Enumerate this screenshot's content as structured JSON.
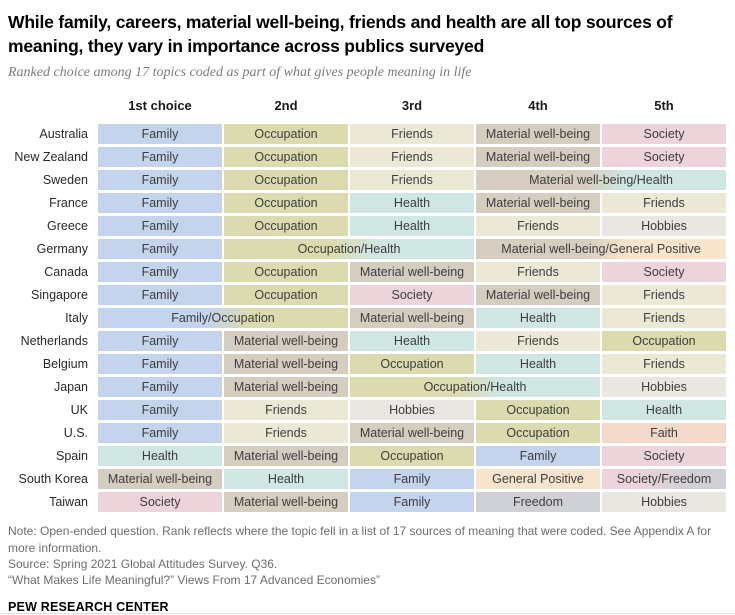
{
  "header": {
    "title": "While family, careers, material well-being, friends and health are all top sources of meaning, they vary in importance across publics surveyed",
    "subtitle": "Ranked choice among 17 topics coded as part of what gives people meaning in life"
  },
  "palette": {
    "family": "#c3d4ec",
    "occupation": "#dcdbb0",
    "friends": "#ebe9d5",
    "material": "#d5cec0",
    "society": "#edd3da",
    "health": "#cfe6e2",
    "hobbies": "#eae6e2",
    "faith": "#f3d9cb",
    "general_positive": "#f8e5cb",
    "freedom": "#d0d1d6"
  },
  "chart_data": {
    "type": "table",
    "title": "While family, careers, material well-being, friends and health are all top sources of meaning, they vary in importance across publics surveyed",
    "columns": [
      "1st choice",
      "2nd",
      "3rd",
      "4th",
      "5th"
    ],
    "rows": [
      {
        "country": "Australia",
        "cells": [
          {
            "label": "Family",
            "topics": [
              "family"
            ],
            "span": 1
          },
          {
            "label": "Occupation",
            "topics": [
              "occupation"
            ],
            "span": 1
          },
          {
            "label": "Friends",
            "topics": [
              "friends"
            ],
            "span": 1
          },
          {
            "label": "Material well-being",
            "topics": [
              "material"
            ],
            "span": 1
          },
          {
            "label": "Society",
            "topics": [
              "society"
            ],
            "span": 1
          }
        ]
      },
      {
        "country": "New Zealand",
        "cells": [
          {
            "label": "Family",
            "topics": [
              "family"
            ],
            "span": 1
          },
          {
            "label": "Occupation",
            "topics": [
              "occupation"
            ],
            "span": 1
          },
          {
            "label": "Friends",
            "topics": [
              "friends"
            ],
            "span": 1
          },
          {
            "label": "Material well-being",
            "topics": [
              "material"
            ],
            "span": 1
          },
          {
            "label": "Society",
            "topics": [
              "society"
            ],
            "span": 1
          }
        ]
      },
      {
        "country": "Sweden",
        "cells": [
          {
            "label": "Family",
            "topics": [
              "family"
            ],
            "span": 1
          },
          {
            "label": "Occupation",
            "topics": [
              "occupation"
            ],
            "span": 1
          },
          {
            "label": "Friends",
            "topics": [
              "friends"
            ],
            "span": 1
          },
          {
            "label": "Material well-being/Health",
            "topics": [
              "material",
              "health"
            ],
            "span": 2
          }
        ]
      },
      {
        "country": "France",
        "cells": [
          {
            "label": "Family",
            "topics": [
              "family"
            ],
            "span": 1
          },
          {
            "label": "Occupation",
            "topics": [
              "occupation"
            ],
            "span": 1
          },
          {
            "label": "Health",
            "topics": [
              "health"
            ],
            "span": 1
          },
          {
            "label": "Material well-being",
            "topics": [
              "material"
            ],
            "span": 1
          },
          {
            "label": "Friends",
            "topics": [
              "friends"
            ],
            "span": 1
          }
        ]
      },
      {
        "country": "Greece",
        "cells": [
          {
            "label": "Family",
            "topics": [
              "family"
            ],
            "span": 1
          },
          {
            "label": "Occupation",
            "topics": [
              "occupation"
            ],
            "span": 1
          },
          {
            "label": "Health",
            "topics": [
              "health"
            ],
            "span": 1
          },
          {
            "label": "Friends",
            "topics": [
              "friends"
            ],
            "span": 1
          },
          {
            "label": "Hobbies",
            "topics": [
              "hobbies"
            ],
            "span": 1
          }
        ]
      },
      {
        "country": "Germany",
        "cells": [
          {
            "label": "Family",
            "topics": [
              "family"
            ],
            "span": 1
          },
          {
            "label": "Occupation/Health",
            "topics": [
              "occupation",
              "health"
            ],
            "span": 2
          },
          {
            "label": "Material well-being/General Positive",
            "topics": [
              "material",
              "general_positive"
            ],
            "span": 2
          }
        ]
      },
      {
        "country": "Canada",
        "cells": [
          {
            "label": "Family",
            "topics": [
              "family"
            ],
            "span": 1
          },
          {
            "label": "Occupation",
            "topics": [
              "occupation"
            ],
            "span": 1
          },
          {
            "label": "Material well-being",
            "topics": [
              "material"
            ],
            "span": 1
          },
          {
            "label": "Friends",
            "topics": [
              "friends"
            ],
            "span": 1
          },
          {
            "label": "Society",
            "topics": [
              "society"
            ],
            "span": 1
          }
        ]
      },
      {
        "country": "Singapore",
        "cells": [
          {
            "label": "Family",
            "topics": [
              "family"
            ],
            "span": 1
          },
          {
            "label": "Occupation",
            "topics": [
              "occupation"
            ],
            "span": 1
          },
          {
            "label": "Society",
            "topics": [
              "society"
            ],
            "span": 1
          },
          {
            "label": "Material well-being",
            "topics": [
              "material"
            ],
            "span": 1
          },
          {
            "label": "Friends",
            "topics": [
              "friends"
            ],
            "span": 1
          }
        ]
      },
      {
        "country": "Italy",
        "cells": [
          {
            "label": "Family/Occupation",
            "topics": [
              "family",
              "occupation"
            ],
            "span": 2
          },
          {
            "label": "Material well-being",
            "topics": [
              "material"
            ],
            "span": 1
          },
          {
            "label": "Health",
            "topics": [
              "health"
            ],
            "span": 1
          },
          {
            "label": "Friends",
            "topics": [
              "friends"
            ],
            "span": 1
          }
        ]
      },
      {
        "country": "Netherlands",
        "cells": [
          {
            "label": "Family",
            "topics": [
              "family"
            ],
            "span": 1
          },
          {
            "label": "Material well-being",
            "topics": [
              "material"
            ],
            "span": 1
          },
          {
            "label": "Health",
            "topics": [
              "health"
            ],
            "span": 1
          },
          {
            "label": "Friends",
            "topics": [
              "friends"
            ],
            "span": 1
          },
          {
            "label": "Occupation",
            "topics": [
              "occupation"
            ],
            "span": 1
          }
        ]
      },
      {
        "country": "Belgium",
        "cells": [
          {
            "label": "Family",
            "topics": [
              "family"
            ],
            "span": 1
          },
          {
            "label": "Material well-being",
            "topics": [
              "material"
            ],
            "span": 1
          },
          {
            "label": "Occupation",
            "topics": [
              "occupation"
            ],
            "span": 1
          },
          {
            "label": "Health",
            "topics": [
              "health"
            ],
            "span": 1
          },
          {
            "label": "Friends",
            "topics": [
              "friends"
            ],
            "span": 1
          }
        ]
      },
      {
        "country": "Japan",
        "cells": [
          {
            "label": "Family",
            "topics": [
              "family"
            ],
            "span": 1
          },
          {
            "label": "Material well-being",
            "topics": [
              "material"
            ],
            "span": 1
          },
          {
            "label": "Occupation/Health",
            "topics": [
              "occupation",
              "health"
            ],
            "span": 2
          },
          {
            "label": "Hobbies",
            "topics": [
              "hobbies"
            ],
            "span": 1
          }
        ]
      },
      {
        "country": "UK",
        "cells": [
          {
            "label": "Family",
            "topics": [
              "family"
            ],
            "span": 1
          },
          {
            "label": "Friends",
            "topics": [
              "friends"
            ],
            "span": 1
          },
          {
            "label": "Hobbies",
            "topics": [
              "hobbies"
            ],
            "span": 1
          },
          {
            "label": "Occupation",
            "topics": [
              "occupation"
            ],
            "span": 1
          },
          {
            "label": "Health",
            "topics": [
              "health"
            ],
            "span": 1
          }
        ]
      },
      {
        "country": "U.S.",
        "cells": [
          {
            "label": "Family",
            "topics": [
              "family"
            ],
            "span": 1
          },
          {
            "label": "Friends",
            "topics": [
              "friends"
            ],
            "span": 1
          },
          {
            "label": "Material well-being",
            "topics": [
              "material"
            ],
            "span": 1
          },
          {
            "label": "Occupation",
            "topics": [
              "occupation"
            ],
            "span": 1
          },
          {
            "label": "Faith",
            "topics": [
              "faith"
            ],
            "span": 1
          }
        ]
      },
      {
        "country": "Spain",
        "cells": [
          {
            "label": "Health",
            "topics": [
              "health"
            ],
            "span": 1
          },
          {
            "label": "Material well-being",
            "topics": [
              "material"
            ],
            "span": 1
          },
          {
            "label": "Occupation",
            "topics": [
              "occupation"
            ],
            "span": 1
          },
          {
            "label": "Family",
            "topics": [
              "family"
            ],
            "span": 1
          },
          {
            "label": "Society",
            "topics": [
              "society"
            ],
            "span": 1
          }
        ]
      },
      {
        "country": "South Korea",
        "cells": [
          {
            "label": "Material well-being",
            "topics": [
              "material"
            ],
            "span": 1
          },
          {
            "label": "Health",
            "topics": [
              "health"
            ],
            "span": 1
          },
          {
            "label": "Family",
            "topics": [
              "family"
            ],
            "span": 1
          },
          {
            "label": "General Positive",
            "topics": [
              "general_positive"
            ],
            "span": 1
          },
          {
            "label": "Society/Freedom",
            "topics": [
              "society",
              "freedom"
            ],
            "span": 1,
            "stops": [
              "30%",
              "70%"
            ]
          }
        ]
      },
      {
        "country": "Taiwan",
        "cells": [
          {
            "label": "Society",
            "topics": [
              "society"
            ],
            "span": 1
          },
          {
            "label": "Material well-being",
            "topics": [
              "material"
            ],
            "span": 1
          },
          {
            "label": "Family",
            "topics": [
              "family"
            ],
            "span": 1
          },
          {
            "label": "Freedom",
            "topics": [
              "freedom"
            ],
            "span": 1
          },
          {
            "label": "Hobbies",
            "topics": [
              "hobbies"
            ],
            "span": 1
          }
        ]
      }
    ]
  },
  "footer": {
    "note": "Note: Open-ended question. Rank reflects where the topic fell in a list of 17 sources of meaning that were coded. See Appendix A for more information.",
    "source": "Source: Spring 2021 Global Attitudes Survey. Q36.",
    "report": "“What Makes Life Meaningful?” Views From 17 Advanced Economies”",
    "brand": "PEW RESEARCH CENTER"
  }
}
